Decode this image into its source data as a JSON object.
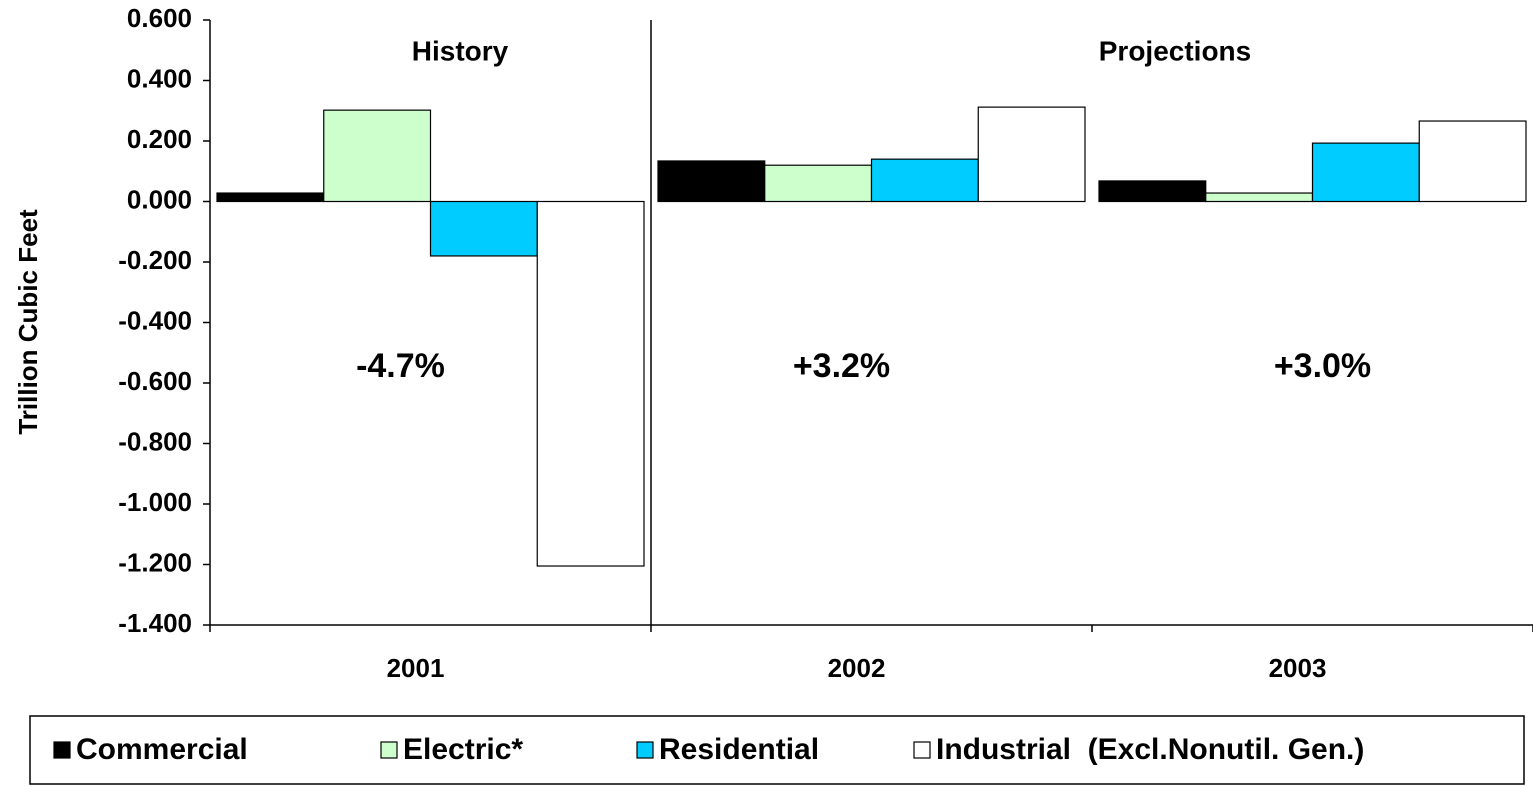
{
  "chart_data": {
    "type": "bar",
    "y_label": "Trillion Cubic Feet",
    "categories": [
      "2001",
      "2002",
      "2003"
    ],
    "series": [
      {
        "name": "Commercial",
        "color": "#000000",
        "values": [
          0.028,
          0.134,
          0.068
        ]
      },
      {
        "name": "Electric*",
        "color": "#ccffcc",
        "values": [
          0.302,
          0.12,
          0.028
        ]
      },
      {
        "name": "Residential",
        "color": "#00ccff",
        "values": [
          -0.18,
          0.14,
          0.193
        ]
      },
      {
        "name": "Industrial  (Excl.Nonutil. Gen.)",
        "color": "#ffffff",
        "values": [
          -1.205,
          0.312,
          0.266
        ]
      }
    ],
    "section_labels": [
      "History",
      "Projections"
    ],
    "annotations": [
      "-4.7%",
      "+3.2%",
      "+3.0%"
    ],
    "ylim": [
      -1.4,
      0.6
    ],
    "yticks": [
      {
        "value": 0.6,
        "label": "0.600"
      },
      {
        "value": 0.4,
        "label": "0.400"
      },
      {
        "value": 0.2,
        "label": "0.200"
      },
      {
        "value": 0,
        "label": "0.000"
      },
      {
        "value": -0.2,
        "label": "-0.200"
      },
      {
        "value": -0.4,
        "label": "-0.400"
      },
      {
        "value": -0.6,
        "label": "-0.600"
      },
      {
        "value": -0.8,
        "label": "-0.800"
      },
      {
        "value": -1,
        "label": "-1.000"
      },
      {
        "value": -1.2,
        "label": "-1.200"
      },
      {
        "value": -1.4,
        "label": "-1.400"
      }
    ],
    "grid": false,
    "legend": "bottom"
  }
}
